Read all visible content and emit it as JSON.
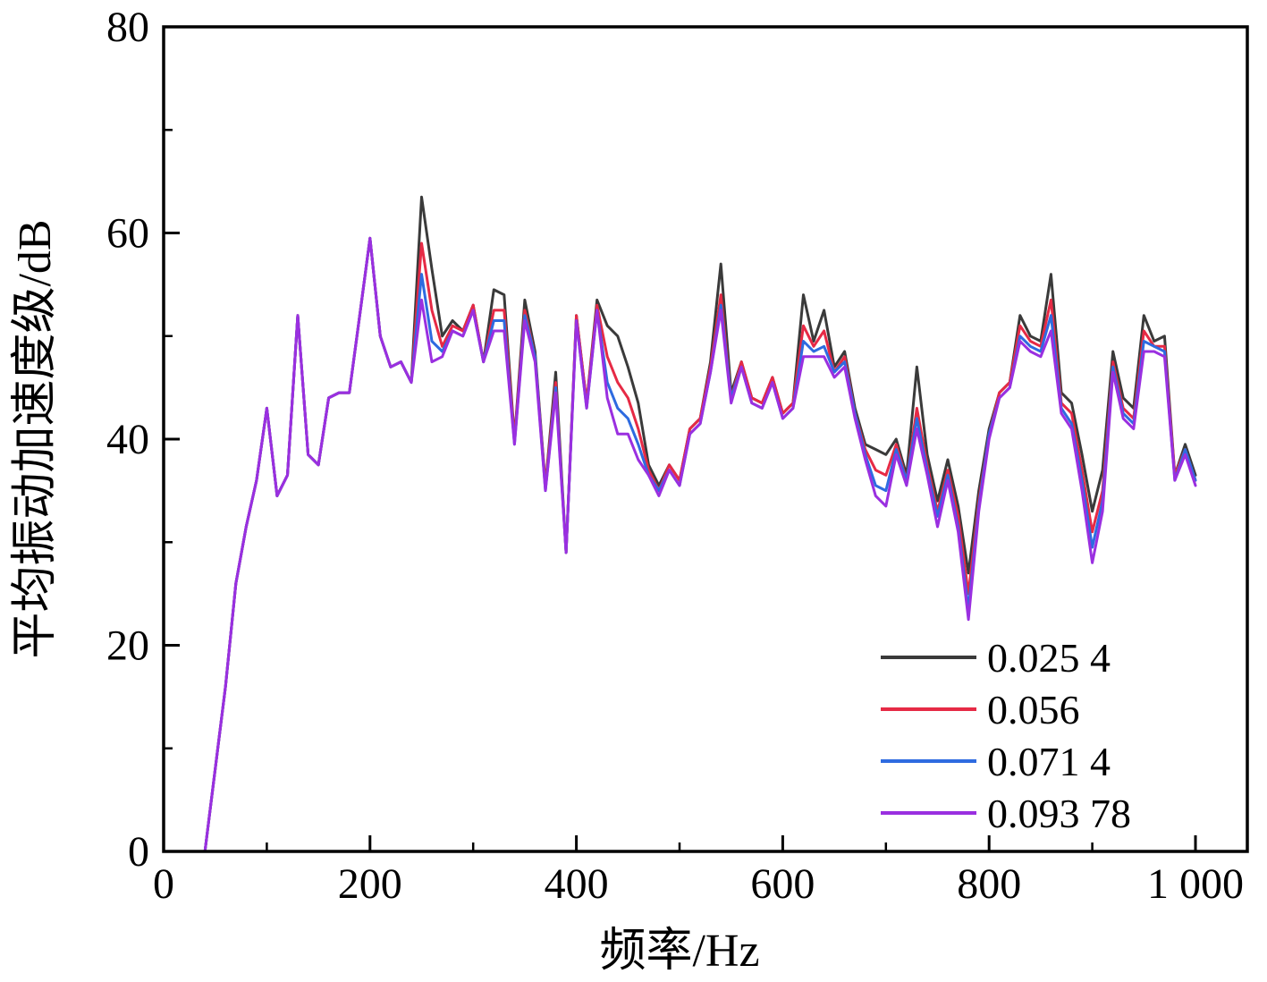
{
  "chart_data": {
    "type": "line",
    "title": "",
    "xlabel": "频率/Hz",
    "ylabel": "平均振动加速度级/dB",
    "xlim": [
      0,
      1050
    ],
    "ylim": [
      0,
      80
    ],
    "x_ticks": [
      0,
      200,
      400,
      600,
      800,
      1000
    ],
    "x_tick_labels": [
      "0",
      "200",
      "400",
      "600",
      "800",
      "1 000"
    ],
    "x_minor_ticks": [
      100,
      300,
      500,
      700,
      900
    ],
    "y_ticks": [
      0,
      20,
      40,
      60,
      80
    ],
    "y_tick_labels": [
      "0",
      "20",
      "40",
      "60",
      "80"
    ],
    "y_minor_ticks": [
      10,
      30,
      50,
      70
    ],
    "grid": false,
    "legend_position": "inside-lower-right",
    "axis_color": "#000000",
    "x": [
      40,
      50,
      60,
      70,
      80,
      90,
      100,
      110,
      120,
      130,
      140,
      150,
      160,
      170,
      180,
      190,
      200,
      210,
      220,
      230,
      240,
      250,
      260,
      270,
      280,
      290,
      300,
      310,
      320,
      330,
      340,
      350,
      360,
      370,
      380,
      390,
      400,
      410,
      420,
      430,
      440,
      450,
      460,
      470,
      480,
      490,
      500,
      510,
      520,
      530,
      540,
      550,
      560,
      570,
      580,
      590,
      600,
      610,
      620,
      630,
      640,
      650,
      660,
      670,
      680,
      690,
      700,
      710,
      720,
      730,
      740,
      750,
      760,
      770,
      780,
      790,
      800,
      810,
      820,
      830,
      840,
      850,
      860,
      870,
      880,
      890,
      900,
      910,
      920,
      930,
      940,
      950,
      960,
      970,
      980,
      990,
      1000
    ],
    "series": [
      {
        "name": "0.025 4",
        "color": "#3a3a3a",
        "values": [
          0,
          8,
          16,
          26,
          31.5,
          36,
          43,
          34.5,
          36.5,
          52,
          38.5,
          37.5,
          44,
          44.5,
          44.5,
          52,
          59.5,
          50,
          47,
          47.5,
          45.5,
          63.5,
          56.5,
          50,
          51.5,
          50.5,
          53,
          47.5,
          54.5,
          54,
          40,
          53.5,
          48.5,
          35.5,
          46.5,
          29,
          52,
          43.5,
          53.5,
          51,
          50,
          47,
          43.5,
          37.5,
          35.5,
          37.5,
          36,
          41,
          42,
          47.5,
          57,
          44.5,
          47.5,
          44,
          43.5,
          46,
          42.5,
          43.5,
          54,
          49.5,
          52.5,
          47,
          48.5,
          43,
          39.5,
          39,
          38.5,
          40,
          36.5,
          47,
          38.5,
          34,
          38,
          33.5,
          27,
          35,
          41,
          44.5,
          45.5,
          52,
          50,
          49.5,
          56,
          44.5,
          43.5,
          38.5,
          33,
          37,
          48.5,
          44,
          43,
          52,
          49.5,
          50,
          36.5,
          39.5,
          36.5
        ]
      },
      {
        "name": "0.056",
        "color": "#e62a45",
        "values": [
          0,
          8,
          16,
          26,
          31.5,
          36,
          43,
          34.5,
          36.5,
          52,
          38.5,
          37.5,
          44,
          44.5,
          44.5,
          52,
          59.5,
          50,
          47,
          47.5,
          45.5,
          59,
          52.5,
          49,
          51,
          50.5,
          53,
          47.5,
          52.5,
          52.5,
          40,
          52.5,
          48,
          35.5,
          45.5,
          29,
          52,
          43.5,
          53,
          48,
          45.5,
          44,
          41,
          37,
          35,
          37.5,
          36,
          41,
          42,
          47,
          54,
          44,
          47.5,
          44,
          43.5,
          46,
          42.5,
          43.5,
          51,
          49,
          50.5,
          46.5,
          48,
          42.5,
          39,
          37,
          36.5,
          39.5,
          36,
          43,
          37.5,
          33,
          37,
          32.5,
          25,
          34,
          40.5,
          44.5,
          45.5,
          51,
          49.5,
          49,
          53.5,
          43.5,
          42.5,
          37,
          31,
          35,
          47.5,
          43,
          42,
          50.5,
          49,
          49,
          36.5,
          39,
          36
        ]
      },
      {
        "name": "0.071 4",
        "color": "#2e6be0",
        "values": [
          0,
          8,
          16,
          26,
          31.5,
          36,
          43,
          34.5,
          36.5,
          52,
          38.5,
          37.5,
          44,
          44.5,
          44.5,
          52,
          59.5,
          50,
          47,
          47.5,
          45.5,
          56,
          49.5,
          48.5,
          50.5,
          50,
          52.5,
          47.5,
          51.5,
          51.5,
          39.5,
          52,
          48,
          35,
          45,
          29,
          51.5,
          43,
          52.5,
          45.5,
          43,
          42,
          39.5,
          36.5,
          35,
          37,
          35.5,
          40.5,
          41.5,
          46.5,
          53,
          44,
          47,
          43.5,
          43,
          45.5,
          42,
          43,
          49.5,
          48.5,
          49,
          46.5,
          47.5,
          42.5,
          38.5,
          35.5,
          35,
          39,
          36,
          42,
          37,
          32.5,
          36.5,
          31.5,
          23.5,
          33.5,
          40.5,
          44,
          45,
          50,
          49,
          48.5,
          52,
          43,
          41.5,
          36,
          29.5,
          34,
          47,
          42.5,
          41.5,
          49.5,
          49,
          48.5,
          36,
          39,
          36
        ]
      },
      {
        "name": "0.093 78",
        "color": "#9a2fe0",
        "values": [
          0,
          8,
          16,
          26,
          31.5,
          36,
          43,
          34.5,
          36.5,
          52,
          38.5,
          37.5,
          44,
          44.5,
          44.5,
          52,
          59.5,
          50,
          47,
          47.5,
          45.5,
          53.5,
          47.5,
          48,
          50.5,
          50,
          52.5,
          47.5,
          50.5,
          50.5,
          39.5,
          51.5,
          47.5,
          35,
          44.5,
          29,
          51.5,
          43,
          52.5,
          44,
          40.5,
          40.5,
          38,
          36.5,
          34.5,
          37,
          35.5,
          40.5,
          41.5,
          46.5,
          52.5,
          43.5,
          47,
          43.5,
          43,
          45.5,
          42,
          43,
          48,
          48,
          48,
          46,
          47,
          42,
          38,
          34.5,
          33.5,
          38.5,
          35.5,
          41,
          36.5,
          31.5,
          36,
          31,
          22.5,
          33,
          40,
          44,
          45,
          49.5,
          48.5,
          48,
          50.5,
          42.5,
          41,
          35,
          28,
          33,
          46.5,
          42,
          41,
          48.5,
          48.5,
          48,
          36,
          38.5,
          35.5
        ]
      }
    ]
  },
  "legend": {
    "entries": [
      {
        "label": "0.025 4",
        "color": "#3a3a3a"
      },
      {
        "label": "0.056",
        "color": "#e62a45"
      },
      {
        "label": "0.071 4",
        "color": "#2e6be0"
      },
      {
        "label": "0.093 78",
        "color": "#9a2fe0"
      }
    ]
  }
}
